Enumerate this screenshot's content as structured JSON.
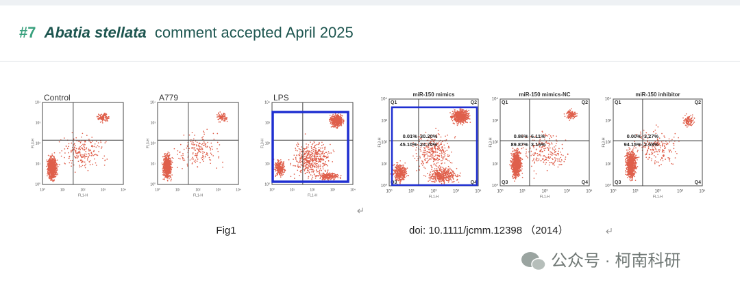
{
  "header": {
    "number": "#7",
    "species": "Abatia stellata",
    "text": "comment accepted April 2025"
  },
  "figure_left": {
    "panels": [
      {
        "title": "Control"
      },
      {
        "title": "A779"
      },
      {
        "title": "LPS"
      }
    ],
    "x_label": "FL1-H",
    "y_label": "FL3-H",
    "ticks": [
      "10⁰",
      "10¹",
      "10²",
      "10³",
      "10⁴"
    ]
  },
  "figure_right": {
    "panels": [
      {
        "title": "miR-150 mimics",
        "quadrants": [
          "0.01%",
          "30.20%",
          "45.10%",
          "24.70%"
        ]
      },
      {
        "title": "miR-150 mimics-NC",
        "quadrants": [
          "0.86%",
          "6.11%",
          "89.87%",
          "3.16%"
        ]
      },
      {
        "title": "miR-150 inhibitor",
        "quadrants": [
          "0.00%",
          "3.27%",
          "94.15%",
          "2.58%"
        ]
      }
    ],
    "quadrant_names": [
      "Q1",
      "Q2",
      "Q3",
      "Q4"
    ],
    "x_label": "FL1-H",
    "y_label": "FL3-H",
    "ticks": [
      "10⁰",
      "10¹",
      "10²",
      "10³",
      "10⁴"
    ]
  },
  "captions": {
    "left": "Fig1",
    "right": "doi: 10.1111/jcmm.12398 （2014）"
  },
  "watermark": "公众号 · 柯南科研"
}
